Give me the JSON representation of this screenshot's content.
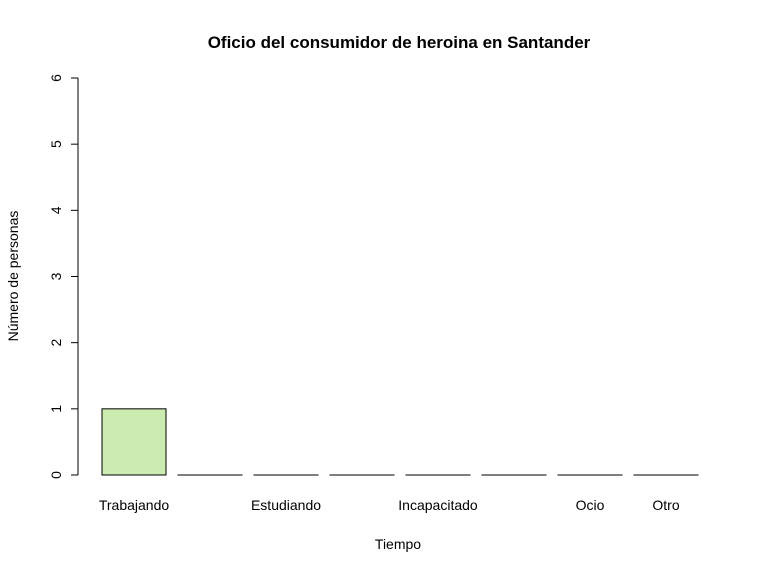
{
  "chart_data": {
    "type": "bar",
    "title": "Oficio del consumidor de heroina en Santander",
    "xlabel": "Tiempo",
    "ylabel": "Número de personas",
    "categories": [
      "Trabajando",
      "",
      "Estudiando",
      "",
      "Incapacitado",
      "",
      "Ocio",
      "Otro"
    ],
    "values": [
      1,
      0,
      0,
      0,
      0,
      0,
      0,
      0
    ],
    "ylim": [
      0,
      6
    ],
    "yticks": [
      "0",
      "1",
      "2",
      "3",
      "4",
      "5",
      "6"
    ],
    "grid": false,
    "bar_color": "#CCEBB0",
    "bar_border_color": "#000000"
  }
}
